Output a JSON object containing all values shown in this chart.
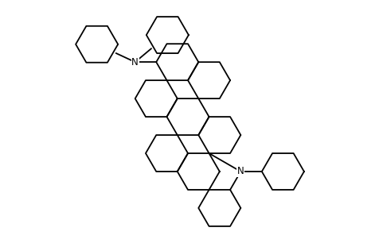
{
  "background_color": "#ffffff",
  "line_color": "#000000",
  "line_width": 1.3,
  "figure_size": [
    4.77,
    3.06
  ],
  "dpi": 100,
  "N_fontsize": 8.5
}
